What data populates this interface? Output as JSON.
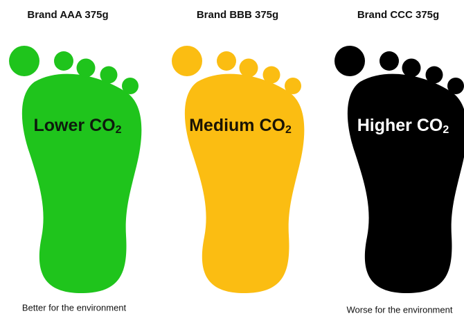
{
  "items": [
    {
      "brand": "Brand AAA 375g",
      "label": "Lower CO",
      "subscript": "2",
      "color": "#1fc41c",
      "text_color": "#0d1a0d",
      "caption": "Better for the environment"
    },
    {
      "brand": "Brand BBB 375g",
      "label": "Medium CO",
      "subscript": "2",
      "color": "#fbbd12",
      "text_color": "#1a1405"
    },
    {
      "brand": "Brand CCC 375g",
      "label": "Higher CO",
      "subscript": "2",
      "color": "#000000",
      "text_color": "#ffffff",
      "caption": "Worse for the environment"
    }
  ]
}
